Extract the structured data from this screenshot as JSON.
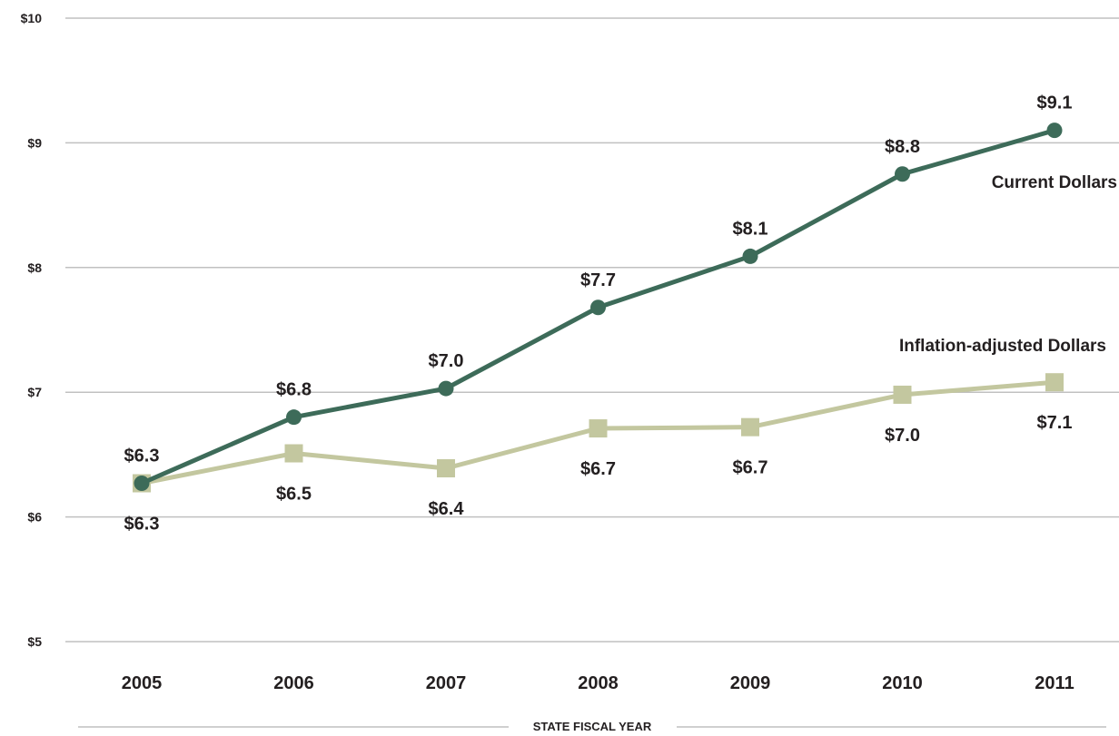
{
  "chart_data": {
    "type": "line",
    "xlabel": "STATE FISCAL YEAR",
    "ylabel": "",
    "categories": [
      "2005",
      "2006",
      "2007",
      "2008",
      "2009",
      "2010",
      "2011"
    ],
    "ylim": [
      5,
      10
    ],
    "yticks": [
      5,
      6,
      7,
      8,
      9,
      10
    ],
    "ytick_labels": [
      "$5",
      "$6",
      "$7",
      "$8",
      "$9",
      "$10"
    ],
    "grid": true,
    "series": [
      {
        "name": "Current Dollars",
        "color": "#3d6b59",
        "marker": "circle",
        "values": [
          6.27,
          6.8,
          7.03,
          7.68,
          8.09,
          8.75,
          9.1
        ],
        "labels": [
          "$6.3",
          "$6.8",
          "$7.0",
          "$7.7",
          "$8.1",
          "$8.8",
          "$9.1"
        ]
      },
      {
        "name": "Inflation-adjusted Dollars",
        "color": "#c3c79f",
        "marker": "square",
        "values": [
          6.27,
          6.51,
          6.39,
          6.71,
          6.72,
          6.98,
          7.08
        ],
        "labels": [
          "$6.3",
          "$6.5",
          "$6.4",
          "$6.7",
          "$6.7",
          "$7.0",
          "$7.1"
        ]
      }
    ]
  }
}
